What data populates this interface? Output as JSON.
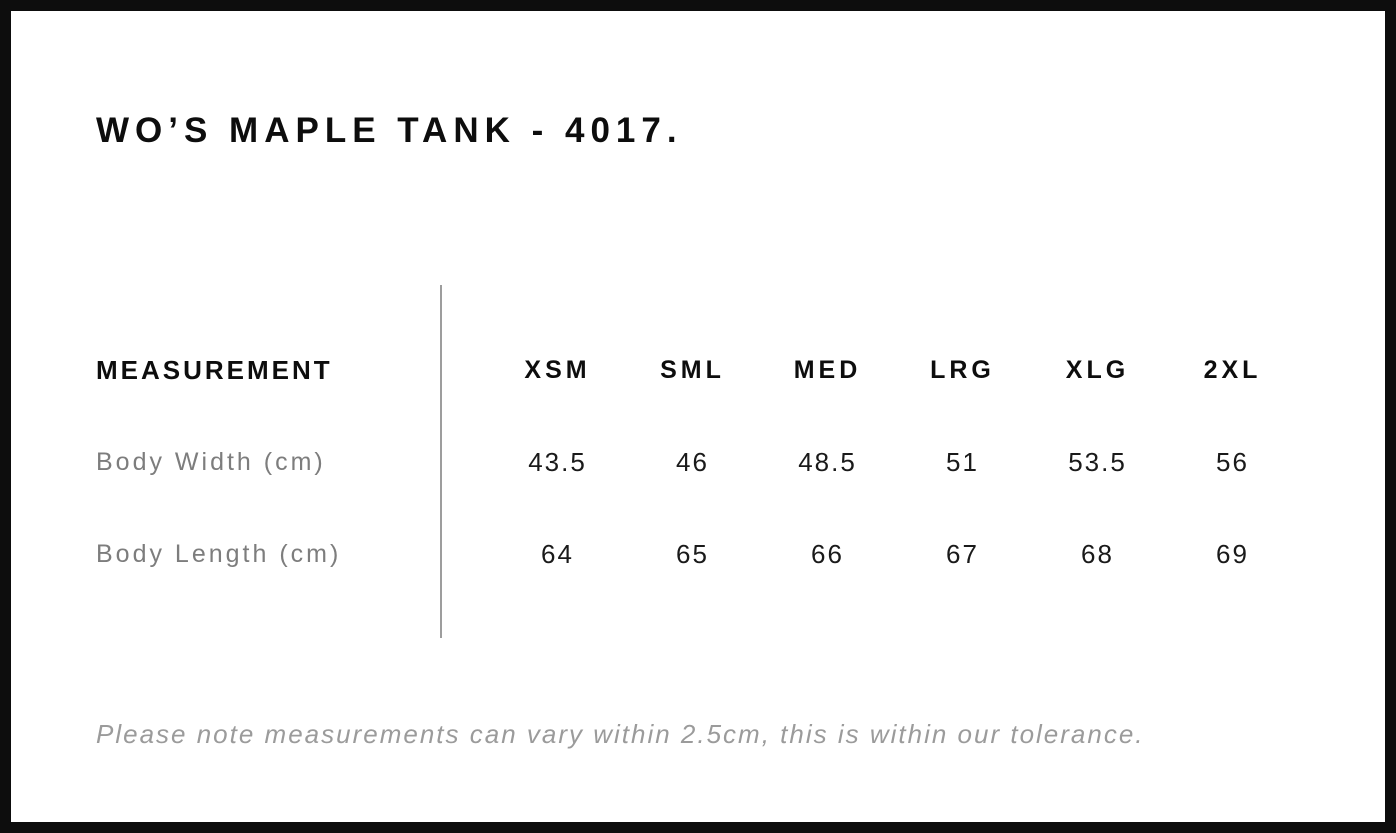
{
  "page": {
    "title": "WO’S MAPLE TANK - 4017."
  },
  "size_chart": {
    "measurement_header": "MEASUREMENT",
    "sizes": [
      "XSM",
      "SML",
      "MED",
      "LRG",
      "XLG",
      "2XL"
    ],
    "rows": [
      {
        "label": "Body Width (cm)",
        "values": [
          "43.5",
          "46",
          "48.5",
          "51",
          "53.5",
          "56"
        ]
      },
      {
        "label": "Body Length (cm)",
        "values": [
          "64",
          "65",
          "66",
          "67",
          "68",
          "69"
        ]
      }
    ],
    "note": "Please note measurements can vary within 2.5cm, this is within our tolerance."
  },
  "colors": {
    "border": "#0d0d0d",
    "heading_text": "#0d0d0d",
    "value_text": "#1a1a1a",
    "label_text": "#7d7d7d",
    "note_text": "#9b9b9b",
    "divider": "#9d9d9d",
    "background": "#ffffff"
  },
  "chart_data": {
    "type": "table",
    "title": "WO’S MAPLE TANK - 4017.",
    "columns": [
      "MEASUREMENT",
      "XSM",
      "SML",
      "MED",
      "LRG",
      "XLG",
      "2XL"
    ],
    "rows": [
      [
        "Body Width (cm)",
        43.5,
        46,
        48.5,
        51,
        53.5,
        56
      ],
      [
        "Body Length (cm)",
        64,
        65,
        66,
        67,
        68,
        69
      ]
    ],
    "footnote": "Please note measurements can vary within 2.5cm, this is within our tolerance."
  }
}
